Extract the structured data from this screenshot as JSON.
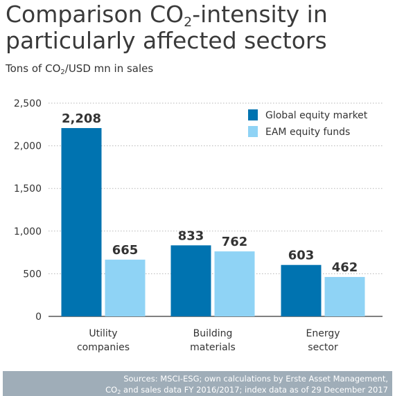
{
  "header": {
    "title_line1_pre": "Comparison CO",
    "title_line1_sub": "2",
    "title_line1_post": "-intensity in",
    "title_line2": "particularly affected sectors",
    "unit_pre": "Tons of CO",
    "unit_sub": "2",
    "unit_post": "/USD mn in sales"
  },
  "footer": {
    "line1": "Sources: MSCI-ESG; own calculations by Erste Asset Management,",
    "line2_pre": "CO",
    "line2_sub": "2",
    "line2_post": " and sales data FY 2016/2017; index data as of 29 December 2017"
  },
  "chart_data": {
    "type": "bar",
    "categories": [
      [
        "Utility",
        "companies"
      ],
      [
        "Building",
        "materials"
      ],
      [
        "Energy",
        "sector"
      ]
    ],
    "series": [
      {
        "name": "Global equity market",
        "values": [
          2208,
          833,
          603
        ],
        "labels": [
          "2,208",
          "833",
          "603"
        ],
        "color": "#0073b0"
      },
      {
        "name": "EAM equity funds",
        "values": [
          665,
          762,
          462
        ],
        "labels": [
          "665",
          "762",
          "462"
        ],
        "color": "#8fd3f5"
      }
    ],
    "ylim": [
      0,
      2500
    ],
    "yticks": [
      0,
      500,
      1000,
      1500,
      2000,
      2500
    ],
    "ytick_labels": [
      "0",
      "500",
      "1,000",
      "1,500",
      "2,000",
      "2,500"
    ],
    "grid": true,
    "legend_position": "top-right"
  }
}
